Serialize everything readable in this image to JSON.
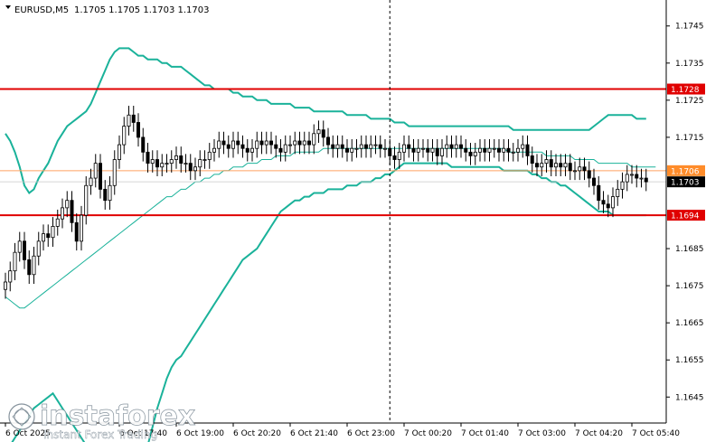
{
  "header": {
    "symbol": "EURUSD,M5",
    "ohlc": "1.1705 1.1705 1.1703 1.1703"
  },
  "watermark": {
    "brand": "instaforex",
    "tagline": "Instant Forex Trading"
  },
  "colors": {
    "background": "#ffffff",
    "candle": "#000000",
    "bands": "#1ab29a",
    "level_lines": "#e00000",
    "price_line": "#ffa060",
    "current_price_tag": "#000000",
    "level_tag": "#e00000",
    "orange_tag": "#ff8c2a"
  },
  "chart_data": {
    "type": "candlestick",
    "y_range": [
      1.1638,
      1.1752
    ],
    "y_ticks": [
      {
        "value": 1.1745,
        "label": "1.1745"
      },
      {
        "value": 1.1735,
        "label": "1.1735"
      },
      {
        "value": 1.1725,
        "label": "1.1725"
      },
      {
        "value": 1.1715,
        "label": "1.1715"
      },
      {
        "value": 1.1685,
        "label": "1.1685"
      },
      {
        "value": 1.1675,
        "label": "1.1675"
      },
      {
        "value": 1.1665,
        "label": "1.1665"
      },
      {
        "value": 1.1655,
        "label": "1.1655"
      },
      {
        "value": 1.1645,
        "label": "1.1645"
      }
    ],
    "x_ticks": [
      {
        "index": 0,
        "label": "6 Oct 2025"
      },
      {
        "index": 24,
        "label": "6 Oct 17:40"
      },
      {
        "index": 36,
        "label": "6 Oct 19:00"
      },
      {
        "index": 48,
        "label": "6 Oct 20:20"
      },
      {
        "index": 60,
        "label": "6 Oct 21:40"
      },
      {
        "index": 72,
        "label": "6 Oct 23:00"
      },
      {
        "index": 84,
        "label": "7 Oct 00:20"
      },
      {
        "index": 96,
        "label": "7 Oct 01:40"
      },
      {
        "index": 108,
        "label": "7 Oct 03:00"
      },
      {
        "index": 120,
        "label": "7 Oct 04:20"
      },
      {
        "index": 132,
        "label": "7 Oct 05:40"
      }
    ],
    "separator_index": 81,
    "levels": [
      {
        "value": 1.1728,
        "label": "1.1728"
      },
      {
        "value": 1.1694,
        "label": "1.1694"
      }
    ],
    "current_price": {
      "value": 1.1703,
      "label": "1.1703"
    },
    "orange_level": {
      "value": 1.1706,
      "label": "1.1706"
    },
    "close": [
      1.1676,
      1.1679,
      1.1684,
      1.1687,
      1.1682,
      1.1678,
      1.1683,
      1.1687,
      1.1689,
      1.1688,
      1.1691,
      1.1693,
      1.1696,
      1.1698,
      1.1692,
      1.1687,
      1.1694,
      1.1702,
      1.1704,
      1.1708,
      1.1701,
      1.1698,
      1.1702,
      1.1709,
      1.1713,
      1.1718,
      1.1721,
      1.1719,
      1.1715,
      1.1711,
      1.1708,
      1.1709,
      1.1707,
      1.1708,
      1.1708,
      1.1709,
      1.171,
      1.1708,
      1.1708,
      1.1706,
      1.1707,
      1.1709,
      1.1709,
      1.1711,
      1.1712,
      1.1714,
      1.1713,
      1.1712,
      1.1714,
      1.1713,
      1.1712,
      1.1711,
      1.1712,
      1.1714,
      1.1713,
      1.1714,
      1.1713,
      1.1712,
      1.1711,
      1.1713,
      1.1713,
      1.1714,
      1.1713,
      1.1714,
      1.1713,
      1.1716,
      1.1717,
      1.1715,
      1.1713,
      1.1712,
      1.1713,
      1.1712,
      1.1711,
      1.1712,
      1.1712,
      1.1713,
      1.1712,
      1.1713,
      1.1713,
      1.1712,
      1.1712,
      1.171,
      1.1709,
      1.1711,
      1.1713,
      1.1712,
      1.1711,
      1.1712,
      1.1712,
      1.1711,
      1.1712,
      1.171,
      1.1712,
      1.1713,
      1.1712,
      1.1713,
      1.1712,
      1.1711,
      1.171,
      1.1711,
      1.1712,
      1.1711,
      1.1712,
      1.1712,
      1.1711,
      1.1712,
      1.1711,
      1.1711,
      1.1712,
      1.1713,
      1.171,
      1.1708,
      1.1707,
      1.1708,
      1.1709,
      1.1707,
      1.1708,
      1.1707,
      1.1708,
      1.1706,
      1.1706,
      1.1707,
      1.1706,
      1.1704,
      1.1702,
      1.1698,
      1.1697,
      1.1696,
      1.1699,
      1.1701,
      1.1703,
      1.1705,
      1.1705,
      1.1704,
      1.1704,
      1.1703
    ],
    "ma": [
      1.1672,
      1.1671,
      1.167,
      1.1669,
      1.1669,
      1.167,
      1.1671,
      1.1672,
      1.1673,
      1.1674,
      1.1675,
      1.1676,
      1.1677,
      1.1678,
      1.1679,
      1.168,
      1.1681,
      1.1682,
      1.1683,
      1.1684,
      1.1685,
      1.1686,
      1.1687,
      1.1688,
      1.1689,
      1.169,
      1.1691,
      1.1692,
      1.1693,
      1.1694,
      1.1695,
      1.1696,
      1.1697,
      1.1698,
      1.1699,
      1.1699,
      1.17,
      1.1701,
      1.1701,
      1.1702,
      1.1703,
      1.1703,
      1.1704,
      1.1704,
      1.1705,
      1.1705,
      1.1706,
      1.1706,
      1.1707,
      1.1707,
      1.1707,
      1.1708,
      1.1708,
      1.1708,
      1.1709,
      1.1709,
      1.1709,
      1.171,
      1.171,
      1.171,
      1.171,
      1.1711,
      1.1711,
      1.1711,
      1.1711,
      1.1711,
      1.1711,
      1.1712,
      1.1712,
      1.1712,
      1.1712,
      1.1712,
      1.1712,
      1.1712,
      1.1712,
      1.1712,
      1.1712,
      1.1712,
      1.1712,
      1.1712,
      1.1712,
      1.1712,
      1.1712,
      1.1712,
      1.1712,
      1.1712,
      1.1712,
      1.1712,
      1.1712,
      1.1712,
      1.1712,
      1.1712,
      1.1712,
      1.1712,
      1.1712,
      1.1712,
      1.1712,
      1.1712,
      1.1712,
      1.1712,
      1.1712,
      1.1712,
      1.1712,
      1.1712,
      1.1712,
      1.1712,
      1.1711,
      1.1711,
      1.1711,
      1.1711,
      1.1711,
      1.1711,
      1.1711,
      1.1711,
      1.171,
      1.171,
      1.171,
      1.171,
      1.171,
      1.171,
      1.1709,
      1.1709,
      1.1709,
      1.1709,
      1.1709,
      1.1708,
      1.1708,
      1.1708,
      1.1708,
      1.1708,
      1.1708,
      1.1708,
      1.1707,
      1.1707,
      1.1707,
      1.1707,
      1.1707,
      1.1707
    ],
    "upper_band": [
      1.1716,
      1.1714,
      1.1711,
      1.1707,
      1.1702,
      1.17,
      1.1701,
      1.1704,
      1.1706,
      1.1708,
      1.1711,
      1.1714,
      1.1716,
      1.1718,
      1.1719,
      1.172,
      1.1721,
      1.1722,
      1.1724,
      1.1727,
      1.173,
      1.1733,
      1.1736,
      1.1738,
      1.1739,
      1.1739,
      1.1739,
      1.1738,
      1.1737,
      1.1737,
      1.1736,
      1.1736,
      1.1736,
      1.1735,
      1.1735,
      1.1734,
      1.1734,
      1.1734,
      1.1733,
      1.1732,
      1.1731,
      1.173,
      1.1729,
      1.1729,
      1.1728,
      1.1728,
      1.1728,
      1.1728,
      1.1727,
      1.1727,
      1.1726,
      1.1726,
      1.1726,
      1.1725,
      1.1725,
      1.1725,
      1.1724,
      1.1724,
      1.1724,
      1.1724,
      1.1724,
      1.1723,
      1.1723,
      1.1723,
      1.1723,
      1.1722,
      1.1722,
      1.1722,
      1.1722,
      1.1722,
      1.1722,
      1.1722,
      1.1721,
      1.1721,
      1.1721,
      1.1721,
      1.1721,
      1.172,
      1.172,
      1.172,
      1.172,
      1.172,
      1.1719,
      1.1719,
      1.1719,
      1.1718,
      1.1718,
      1.1718,
      1.1718,
      1.1718,
      1.1718,
      1.1718,
      1.1718,
      1.1718,
      1.1718,
      1.1718,
      1.1718,
      1.1718,
      1.1718,
      1.1718,
      1.1718,
      1.1718,
      1.1718,
      1.1718,
      1.1718,
      1.1718,
      1.1718,
      1.1717,
      1.1717,
      1.1717,
      1.1717,
      1.1717,
      1.1717,
      1.1717,
      1.1717,
      1.1717,
      1.1717,
      1.1717,
      1.1717,
      1.1717,
      1.1717,
      1.1717,
      1.1717,
      1.1717,
      1.1718,
      1.1719,
      1.172,
      1.1721,
      1.1721,
      1.1721,
      1.1721,
      1.1721,
      1.1721,
      1.172,
      1.172,
      1.172
    ],
    "lower_band": [
      1.163,
      1.1632,
      1.1634,
      1.1636,
      1.1638,
      1.164,
      1.1642,
      1.1643,
      1.1644,
      1.1645,
      1.1646,
      1.1644,
      1.1642,
      1.164,
      1.1638,
      1.1636,
      1.1634,
      1.1632,
      1.163,
      1.163,
      1.163,
      1.163,
      1.163,
      1.163,
      1.163,
      1.163,
      1.163,
      1.163,
      1.163,
      1.163,
      1.1632,
      1.1637,
      1.1642,
      1.1646,
      1.165,
      1.1653,
      1.1655,
      1.1656,
      1.1658,
      1.166,
      1.1662,
      1.1664,
      1.1666,
      1.1668,
      1.167,
      1.1672,
      1.1674,
      1.1676,
      1.1678,
      1.168,
      1.1682,
      1.1683,
      1.1684,
      1.1685,
      1.1687,
      1.1689,
      1.1691,
      1.1693,
      1.1695,
      1.1696,
      1.1697,
      1.1698,
      1.1698,
      1.1699,
      1.1699,
      1.17,
      1.17,
      1.17,
      1.1701,
      1.1701,
      1.1701,
      1.1701,
      1.1702,
      1.1702,
      1.1702,
      1.1703,
      1.1703,
      1.1703,
      1.1704,
      1.1704,
      1.1705,
      1.1705,
      1.1706,
      1.1707,
      1.1708,
      1.1708,
      1.1708,
      1.1708,
      1.1708,
      1.1708,
      1.1708,
      1.1708,
      1.1708,
      1.1708,
      1.1707,
      1.1707,
      1.1707,
      1.1707,
      1.1707,
      1.1707,
      1.1707,
      1.1707,
      1.1707,
      1.1707,
      1.1707,
      1.1706,
      1.1706,
      1.1706,
      1.1706,
      1.1706,
      1.1706,
      1.1705,
      1.1705,
      1.1704,
      1.1704,
      1.1703,
      1.1703,
      1.1702,
      1.1702,
      1.1701,
      1.17,
      1.1699,
      1.1698,
      1.1697,
      1.1696,
      1.1695,
      1.1695,
      1.1695,
      1.1694,
      1.1694,
      1.1694,
      1.1694,
      1.1694,
      1.1694,
      1.1694,
      1.1694
    ]
  }
}
